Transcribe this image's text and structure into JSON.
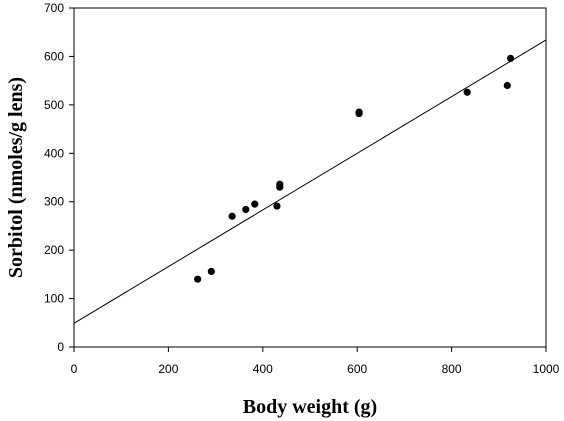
{
  "chart_data": {
    "type": "scatter",
    "title": "",
    "xlabel": "Body weight (g)",
    "ylabel": "Sorbitol (nmoles/g lens)",
    "xlim": [
      0,
      1000
    ],
    "ylim": [
      0,
      700
    ],
    "xticks": [
      "0",
      "200",
      "400",
      "600",
      "800",
      "1000"
    ],
    "yticks": [
      "0",
      "100",
      "200",
      "300",
      "400",
      "500",
      "600",
      "700"
    ],
    "grid": false,
    "legend": "none",
    "marker_color": "#000000",
    "points": [
      {
        "x": 262,
        "y": 140
      },
      {
        "x": 291,
        "y": 156
      },
      {
        "x": 335,
        "y": 270
      },
      {
        "x": 364,
        "y": 284
      },
      {
        "x": 383,
        "y": 295
      },
      {
        "x": 430,
        "y": 291
      },
      {
        "x": 436,
        "y": 330
      },
      {
        "x": 436,
        "y": 336
      },
      {
        "x": 604,
        "y": 482
      },
      {
        "x": 604,
        "y": 485
      },
      {
        "x": 833,
        "y": 526
      },
      {
        "x": 918,
        "y": 540
      },
      {
        "x": 925,
        "y": 596
      }
    ],
    "trendline": {
      "type": "linear",
      "from": {
        "x": 0,
        "y": 49
      },
      "to": {
        "x": 1000,
        "y": 634
      }
    }
  }
}
